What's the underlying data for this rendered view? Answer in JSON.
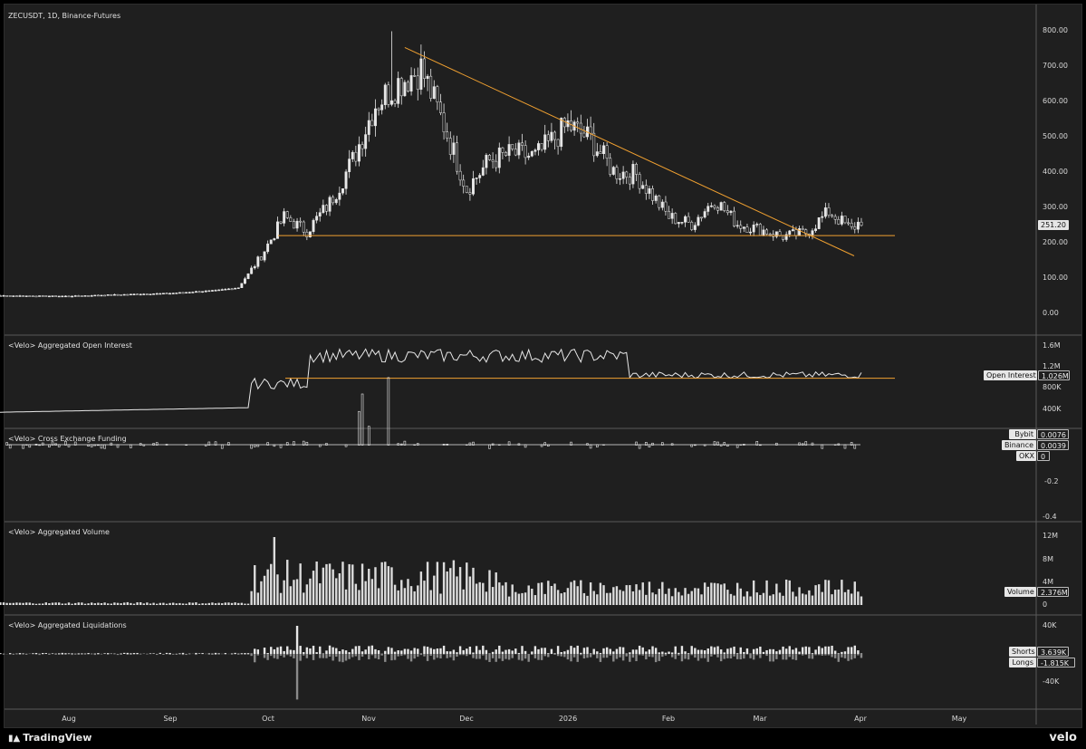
{
  "chart": {
    "title": "ZECUSDT, 1D, Binance-Futures",
    "price_axis_ticks": [
      "800.00",
      "700.00",
      "600.00",
      "500.00",
      "400.00",
      "300.00",
      "200.00",
      "100.00",
      "0.00"
    ],
    "last_price": "251.20"
  },
  "panels": {
    "open_interest": {
      "title": "<Velo> Aggregated Open Interest",
      "axis_ticks": [
        "1.6M",
        "1.2M",
        "800K",
        "400K"
      ],
      "legend_name": "Open Interest",
      "legend_value": "1.026M"
    },
    "funding": {
      "title": "<Velo> Cross Exchange Funding",
      "axis_ticks": [
        "-0.2",
        "-0.4"
      ],
      "legend": [
        {
          "name": "Bybit",
          "value": "0.0076"
        },
        {
          "name": "Binance",
          "value": "0.0039"
        },
        {
          "name": "OKX",
          "value": "0"
        }
      ]
    },
    "volume": {
      "title": "<Velo> Aggregated Volume",
      "axis_ticks": [
        "12M",
        "8M",
        "4M",
        "0"
      ],
      "legend_name": "Volume",
      "legend_value": "2.376M"
    },
    "liquidations": {
      "title": "<Velo> Aggregated Liquidations",
      "axis_ticks": [
        "40K",
        "-40K"
      ],
      "legend": [
        {
          "name": "Shorts",
          "value": "3.639K"
        },
        {
          "name": "Longs",
          "value": "-1.815K"
        }
      ]
    }
  },
  "time_axis": [
    "Aug",
    "Sep",
    "Oct",
    "Nov",
    "Dec",
    "2026",
    "Feb",
    "Mar",
    "Apr",
    "May"
  ],
  "footer": {
    "brand": "TradingView",
    "watermark": "velo"
  },
  "colors": {
    "background": "#1f1f1f",
    "candle": "#e8e8e8",
    "trendline": "#f0a030",
    "separator": "#5a5a5a"
  },
  "chart_data": {
    "type": "candlestick",
    "symbol": "ZECUSDT",
    "timeframe": "1D",
    "exchange": "Binance-Futures",
    "ylim": [
      0,
      800
    ],
    "last_price": 251.2,
    "price_close_weekly": [
      {
        "date": "2025-07-01",
        "close": 38
      },
      {
        "date": "2025-07-15",
        "close": 37
      },
      {
        "date": "2025-08-01",
        "close": 36
      },
      {
        "date": "2025-08-15",
        "close": 40
      },
      {
        "date": "2025-09-01",
        "close": 44
      },
      {
        "date": "2025-09-15",
        "close": 52
      },
      {
        "date": "2025-09-22",
        "close": 60
      },
      {
        "date": "2025-09-29",
        "close": 150
      },
      {
        "date": "2025-10-06",
        "close": 260
      },
      {
        "date": "2025-10-13",
        "close": 220
      },
      {
        "date": "2025-10-20",
        "close": 300
      },
      {
        "date": "2025-10-27",
        "close": 420
      },
      {
        "date": "2025-11-03",
        "close": 580
      },
      {
        "date": "2025-11-10",
        "close": 640
      },
      {
        "date": "2025-11-17",
        "close": 680
      },
      {
        "date": "2025-11-24",
        "close": 520
      },
      {
        "date": "2025-12-01",
        "close": 340
      },
      {
        "date": "2025-12-08",
        "close": 420
      },
      {
        "date": "2025-12-15",
        "close": 440
      },
      {
        "date": "2025-12-22",
        "close": 430
      },
      {
        "date": "2026-01-01",
        "close": 520
      },
      {
        "date": "2026-01-08",
        "close": 480
      },
      {
        "date": "2026-01-15",
        "close": 390
      },
      {
        "date": "2026-01-22",
        "close": 380
      },
      {
        "date": "2026-02-01",
        "close": 260
      },
      {
        "date": "2026-02-08",
        "close": 240
      },
      {
        "date": "2026-02-15",
        "close": 310
      },
      {
        "date": "2026-02-22",
        "close": 240
      },
      {
        "date": "2026-03-01",
        "close": 225
      },
      {
        "date": "2026-03-08",
        "close": 205
      },
      {
        "date": "2026-03-15",
        "close": 215
      },
      {
        "date": "2026-03-22",
        "close": 275
      },
      {
        "date": "2026-03-29",
        "close": 225
      },
      {
        "date": "2026-04-01",
        "close": 251
      }
    ],
    "peak_high": 780,
    "support_level": 210,
    "descending_trendline": {
      "from": {
        "date": "2025-11-12",
        "price": 740
      },
      "to": {
        "date": "2026-04-01",
        "price": 150
      }
    },
    "open_interest_support": 900000,
    "funding_min": -0.38,
    "volume_max": 12000000,
    "liquidations_range": [
      -40000,
      40000
    ]
  }
}
